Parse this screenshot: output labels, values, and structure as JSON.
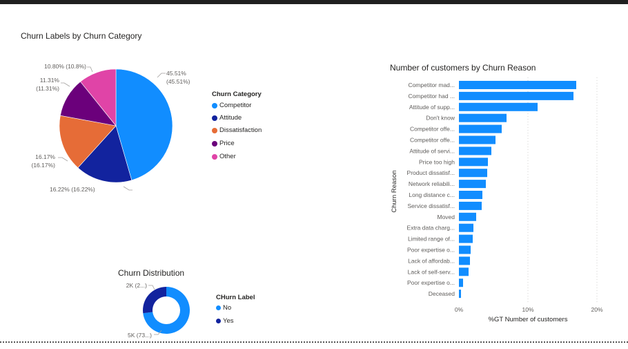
{
  "colors": {
    "competitor": "#118DFF",
    "attitude": "#12239E",
    "dissatisfaction": "#E66C37",
    "price": "#6B007B",
    "other": "#E044A7",
    "bar": "#118DFF",
    "no": "#118DFF",
    "yes": "#12239E",
    "gridline": "#c8c6c4"
  },
  "pie": {
    "title": "Churn Labels by Churn Category",
    "legend_title": "Churn Category",
    "legend": [
      {
        "label": "Competitor",
        "color": "#118DFF"
      },
      {
        "label": "Attitude",
        "color": "#12239E"
      },
      {
        "label": "Dissatisfaction",
        "color": "#E66C37"
      },
      {
        "label": "Price",
        "color": "#6B007B"
      },
      {
        "label": "Other",
        "color": "#E044A7"
      }
    ]
  },
  "pie_labels": {
    "competitor_1": "45.51%",
    "competitor_2": "(45.51%)",
    "attitude": "16.22% (16.22%)",
    "dissatisfaction_1": "16.17%",
    "dissatisfaction_2": "(16.17%)",
    "price_1": "11.31%",
    "price_2": "(11.31%)",
    "other": "10.80% (10.8%)"
  },
  "donut": {
    "title": "Churn Distribution",
    "legend_title": "CHurn Label",
    "legend": [
      {
        "label": "No",
        "color": "#118DFF"
      },
      {
        "label": "Yes",
        "color": "#12239E"
      }
    ],
    "label_yes": "2K (2...)",
    "label_no": "5K (73...)"
  },
  "bars": {
    "title": "Number of customers by Churn Reason",
    "ylabel": "Churn Reason",
    "xlabel": "%GT Number of customers",
    "ticks": [
      "0%",
      "10%",
      "20%"
    ]
  },
  "chart_data": [
    {
      "type": "pie",
      "title": "Churn Labels by Churn Category",
      "legend_title": "Churn Category",
      "categories": [
        "Competitor",
        "Attitude",
        "Dissatisfaction",
        "Price",
        "Other"
      ],
      "values": [
        45.51,
        16.22,
        16.17,
        11.31,
        10.8
      ],
      "unit": "%"
    },
    {
      "type": "pie",
      "variant": "donut",
      "title": "Churn Distribution",
      "legend_title": "CHurn Label",
      "categories": [
        "No",
        "Yes"
      ],
      "values": [
        73,
        27
      ]
    },
    {
      "type": "bar",
      "orientation": "horizontal",
      "title": "Number of customers by Churn Reason",
      "ylabel": "Churn Reason",
      "xlabel": "%GT Number of customers",
      "xlim": [
        0,
        20
      ],
      "grid": true,
      "categories": [
        "Competitor mad...",
        "Competitor had ...",
        "Attitude of supp...",
        "Don't know",
        "Competitor offe...",
        "Competitor offe...",
        "Attitude of servi...",
        "Price too high",
        "Product dissatisf...",
        "Network reliabili...",
        "Long distance c...",
        "Service dissatisf...",
        "Moved",
        "Extra data charg...",
        "Limited range of...",
        "Poor expertise o...",
        "Lack of affordab...",
        "Lack of self-serv...",
        "Poor expertise o...",
        "Deceased"
      ],
      "values": [
        17.0,
        16.6,
        11.4,
        6.9,
        6.2,
        5.3,
        4.7,
        4.2,
        4.1,
        3.9,
        3.4,
        3.3,
        2.5,
        2.1,
        2.0,
        1.7,
        1.6,
        1.4,
        0.6,
        0.3
      ]
    }
  ]
}
